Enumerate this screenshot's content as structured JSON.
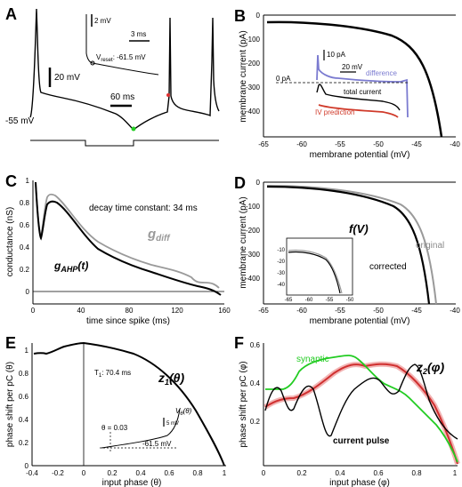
{
  "panels": {
    "A": {
      "label": "A",
      "resting": "-55 mV",
      "scale_v": "20 mV",
      "scale_t": "60 ms",
      "inset_scale_v": "2 mV",
      "inset_scale_t": "3 ms",
      "inset_vreset": "V",
      "inset_vreset_sub": "reset",
      "inset_vreset_val": ": -61.5 mV"
    },
    "B": {
      "label": "B",
      "ylabel": "membrane current (pA)",
      "xlabel": "membrane potential (mV)",
      "xticks": [
        "-65",
        "-60",
        "-55",
        "-50",
        "-45",
        "-40"
      ],
      "yticks": [
        "0",
        "-100",
        "-200",
        "-300",
        "-400"
      ],
      "inset_scale_i": "10 pA",
      "inset_scale_v": "20 mV",
      "inset_zero": "0 pA",
      "legend_difference": "difference",
      "legend_total": "total current",
      "legend_iv": "IV prediction",
      "colors": {
        "difference": "#7b7bd0",
        "iv": "#d03a2a",
        "total": "#000000"
      }
    },
    "C": {
      "label": "C",
      "ylabel": "conductance (nS)",
      "xlabel": "time since spike (ms)",
      "xticks": [
        "0",
        "40",
        "80",
        "120",
        "160"
      ],
      "yticks": [
        "0",
        "0.2",
        "0.4",
        "0.6",
        "0.8",
        "1"
      ],
      "annotation": "decay time constant: 34 ms",
      "gdiff": "g",
      "gdiff_sub": "diff",
      "gahp": "g",
      "gahp_sub": "AHP",
      "gahp_arg": "(t)",
      "colors": {
        "gdiff": "#9a9a9a",
        "gahp": "#000000"
      }
    },
    "D": {
      "label": "D",
      "ylabel": "membrane current (pA)",
      "xlabel": "membrane potential (mV)",
      "xticks": [
        "-65",
        "-60",
        "-55",
        "-50",
        "-45",
        "-40"
      ],
      "yticks": [
        "0",
        "-100",
        "-200",
        "-300",
        "-400"
      ],
      "fv": "f(V)",
      "original": "original",
      "corrected": "corrected",
      "inset_xticks": [
        "-65",
        "-60",
        "-55",
        "-50"
      ],
      "inset_yticks": [
        "-10",
        "-20",
        "-30",
        "-40"
      ]
    },
    "E": {
      "label": "E",
      "ylabel": "phase shift per pC (θ)",
      "xlabel": "input phase (θ)",
      "xticks": [
        "-0.4",
        "-0.2",
        "0",
        "0.2",
        "0.4",
        "0.6",
        "0.8",
        "1"
      ],
      "yticks": [
        "0",
        "0.2",
        "0.4",
        "0.6",
        "0.8",
        "1"
      ],
      "period": "T",
      "period_sub": "1",
      "period_val": ": 70.4 ms",
      "z1": "z",
      "z1_sub": "1",
      "z1_arg": "(θ)",
      "inset_theta": "θ = 0.03",
      "inset_scale": "5 mV",
      "inset_v": "V",
      "inset_v_sub": "θ",
      "inset_v_arg": "(θ)",
      "inset_level": "-61.5 mV"
    },
    "F": {
      "label": "F",
      "ylabel": "phase shift per pC (φ)",
      "xlabel": "input phase (φ)",
      "xticks": [
        "0",
        "0.2",
        "0.4",
        "0.6",
        "0.8",
        "1"
      ],
      "yticks": [
        "0.2",
        "0.4",
        "0.6"
      ],
      "synaptic": "synaptic",
      "current_pulse": "current pulse",
      "z2": "z",
      "z2_sub": "2",
      "z2_arg": "(φ)",
      "colors": {
        "synaptic": "#22cc22",
        "z2": "#d03030",
        "pulse": "#000000"
      }
    }
  }
}
